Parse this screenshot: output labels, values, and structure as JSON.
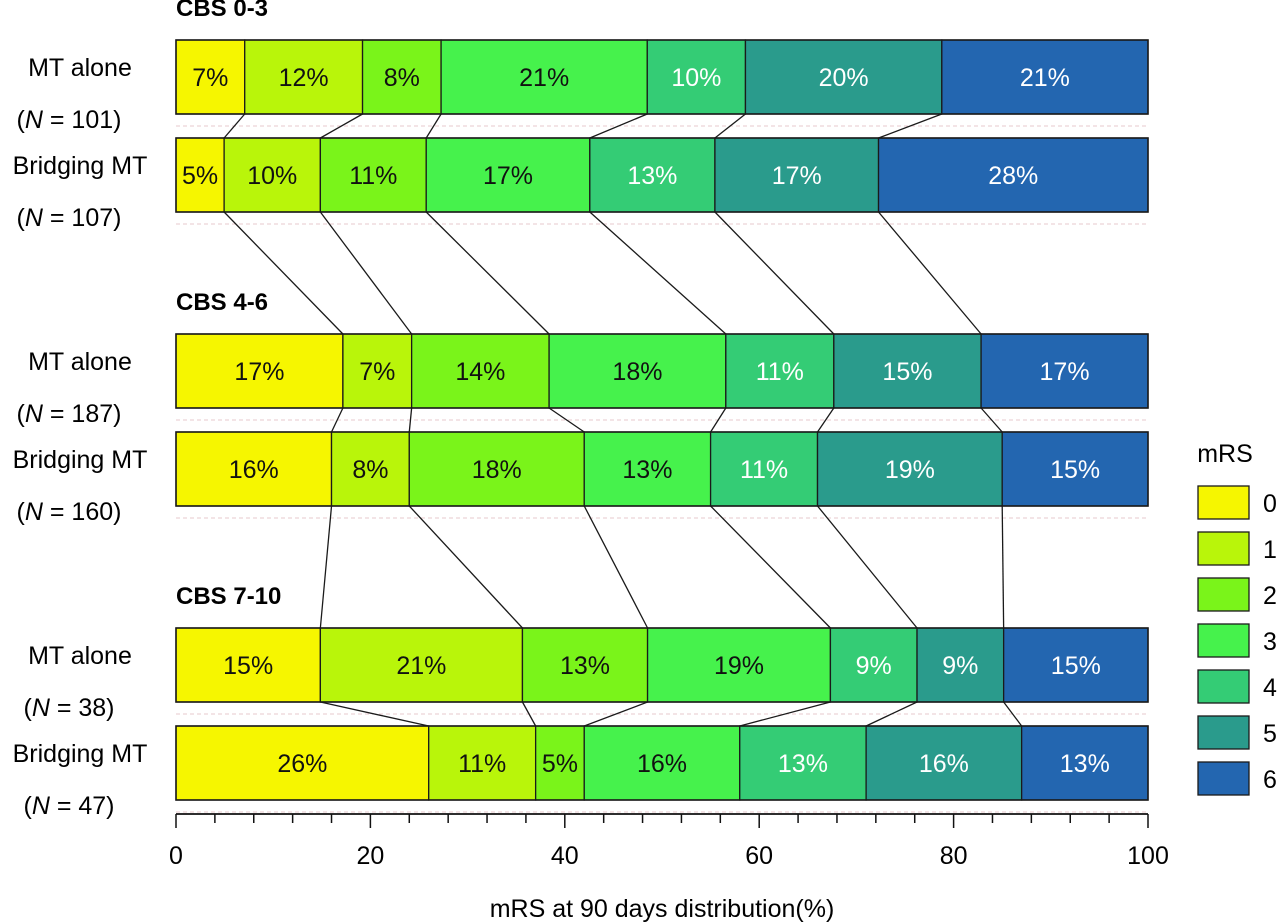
{
  "chart_data": {
    "type": "bar",
    "orientation": "horizontal",
    "stacked": true,
    "xlabel": "mRS at 90 days distribution(%)",
    "xlim": [
      0,
      100
    ],
    "xticks": [
      "0",
      "20",
      "40",
      "60",
      "80",
      "100"
    ],
    "legend": {
      "title": "mRS",
      "position": "right",
      "categories": [
        "0",
        "1",
        "2",
        "3",
        "4",
        "5",
        "6"
      ]
    },
    "category_colors": [
      "#f6f600",
      "#b9f50a",
      "#7af41a",
      "#46f24c",
      "#34cc75",
      "#2a9b8c",
      "#2366b0"
    ],
    "groups": [
      {
        "title": "CBS 0-3",
        "rows": [
          {
            "label": "MT alone",
            "n_label": "(N = 101)",
            "n_prefix": "(",
            "n_italic": "N",
            "n_suffix": " = 101)",
            "values": [
              7,
              12,
              8,
              21,
              10,
              20,
              21
            ],
            "labels": [
              "7%",
              "12%",
              "8%",
              "21%",
              "10%",
              "20%",
              "21%"
            ]
          },
          {
            "label": "Bridging MT",
            "n_label": "(N = 107)",
            "n_prefix": "(",
            "n_italic": "N",
            "n_suffix": " = 107)",
            "values": [
              5,
              10,
              11,
              17,
              13,
              17,
              28
            ],
            "labels": [
              "5%",
              "10%",
              "11%",
              "17%",
              "13%",
              "17%",
              "28%"
            ]
          }
        ]
      },
      {
        "title": "CBS 4-6",
        "rows": [
          {
            "label": "MT alone",
            "n_label": "(N = 187)",
            "n_prefix": "(",
            "n_italic": "N",
            "n_suffix": " = 187)",
            "values": [
              17,
              7,
              14,
              18,
              11,
              15,
              17
            ],
            "labels": [
              "17%",
              "7%",
              "14%",
              "18%",
              "11%",
              "15%",
              "17%"
            ]
          },
          {
            "label": "Bridging MT",
            "n_label": "(N = 160)",
            "n_prefix": "(",
            "n_italic": "N",
            "n_suffix": " = 160)",
            "values": [
              16,
              8,
              18,
              13,
              11,
              19,
              15
            ],
            "labels": [
              "16%",
              "8%",
              "18%",
              "13%",
              "11%",
              "19%",
              "15%"
            ]
          }
        ]
      },
      {
        "title": "CBS 7-10",
        "rows": [
          {
            "label": "MT alone",
            "n_label": "(N = 38)",
            "n_prefix": "(",
            "n_italic": "N",
            "n_suffix": " = 38)",
            "values": [
              15,
              21,
              13,
              19,
              9,
              9,
              15
            ],
            "labels": [
              "15%",
              "21%",
              "13%",
              "19%",
              "9%",
              "9%",
              "15%"
            ]
          },
          {
            "label": "Bridging MT",
            "n_label": "(N = 47)",
            "n_prefix": "(",
            "n_italic": "N",
            "n_suffix": " = 47)",
            "values": [
              26,
              11,
              5,
              16,
              13,
              16,
              13
            ],
            "labels": [
              "26%",
              "11%",
              "5%",
              "16%",
              "13%",
              "16%",
              "13%"
            ]
          }
        ]
      }
    ]
  }
}
